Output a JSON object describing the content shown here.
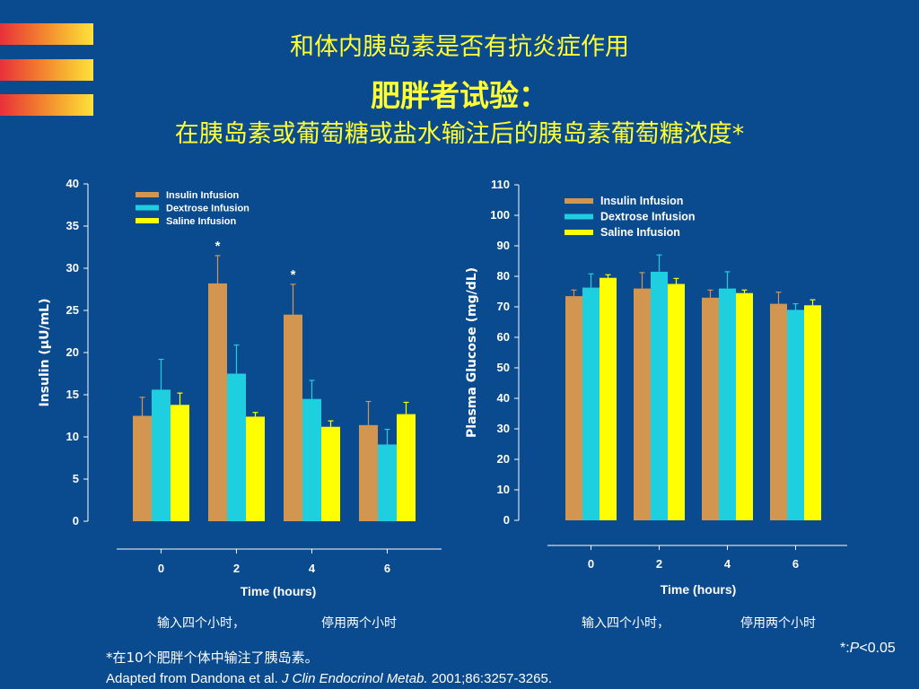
{
  "slide": {
    "title_line1": "和体内胰岛素是否有抗炎症作用",
    "title_line2": "肥胖者试验：",
    "title_line3": "在胰岛素或葡萄糖或盐水输注后的胰岛素葡萄糖浓度*",
    "note_left_a": "输入四个小时，",
    "note_left_b": "停用两个小时",
    "note_right_a": "输入四个小时，",
    "note_right_b": "停用两个小时",
    "footnote": "*在10个肥胖个体中输注了胰岛素。",
    "citation_plain": "Adapted from Dandona et al. ",
    "citation_journal": "J Clin Endocrinol Metab.",
    "citation_rest": " 2001;86:3257-3265.",
    "pvalue_prefix": "*:",
    "pvalue_p": "P",
    "pvalue_rest": "<0.05"
  },
  "colors": {
    "background": "#0a4a8e",
    "insulin": "#d39650",
    "dextrose": "#1ecfe0",
    "saline": "#ffff00",
    "title": "#ffff33"
  },
  "chart_data": [
    {
      "type": "bar",
      "ylabel": "Insulin (μU/mL)",
      "xlabel": "Time (hours)",
      "ylim": [
        0,
        40
      ],
      "yticks": [
        0,
        5,
        10,
        15,
        20,
        25,
        30,
        35,
        40
      ],
      "categories": [
        "0",
        "2",
        "4",
        "6"
      ],
      "legend_position": "top-left",
      "series": [
        {
          "name": "Insulin Infusion",
          "values": [
            12.5,
            28.2,
            24.5,
            11.4
          ],
          "errors": [
            2.2,
            3.3,
            3.6,
            2.8
          ]
        },
        {
          "name": "Dextrose Infusion",
          "values": [
            15.6,
            17.5,
            14.5,
            9.1
          ],
          "errors": [
            3.6,
            3.4,
            2.2,
            1.8
          ]
        },
        {
          "name": "Saline Infusion",
          "values": [
            13.8,
            12.4,
            11.2,
            12.7
          ],
          "errors": [
            1.4,
            0.5,
            0.7,
            1.4
          ]
        }
      ],
      "significance": [
        {
          "category": "2",
          "series": "Insulin Infusion",
          "label": "*"
        },
        {
          "category": "4",
          "series": "Insulin Infusion",
          "label": "*"
        }
      ]
    },
    {
      "type": "bar",
      "ylabel": "Plasma Glucose (mg/dL)",
      "xlabel": "Time (hours)",
      "ylim": [
        0,
        110
      ],
      "yticks": [
        0,
        10,
        20,
        30,
        40,
        50,
        60,
        70,
        80,
        90,
        100,
        110
      ],
      "categories": [
        "0",
        "2",
        "4",
        "6"
      ],
      "legend_position": "top-left",
      "series": [
        {
          "name": "Insulin Infusion",
          "values": [
            73.5,
            76,
            73,
            71
          ],
          "errors": [
            2,
            5.2,
            2.5,
            3.8
          ]
        },
        {
          "name": "Dextrose Infusion",
          "values": [
            76.3,
            81.5,
            76,
            69
          ],
          "errors": [
            4.5,
            5.5,
            5.5,
            2
          ]
        },
        {
          "name": "Saline Infusion",
          "values": [
            79.5,
            77.5,
            74.5,
            70.5
          ],
          "errors": [
            1,
            1.8,
            1,
            1.8
          ]
        }
      ],
      "significance": []
    }
  ]
}
